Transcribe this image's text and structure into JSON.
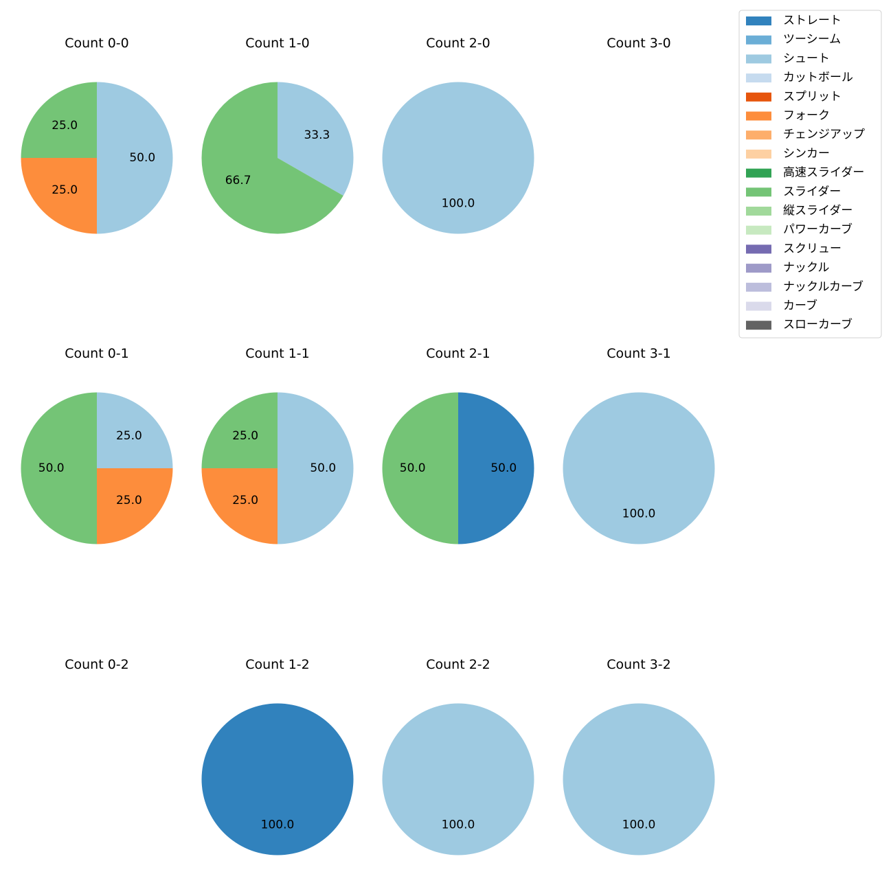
{
  "chart_data": {
    "type": "pie",
    "legend_position": "top-right",
    "legend": [
      {
        "label": "ストレート",
        "color": "#3182bd"
      },
      {
        "label": "ツーシーム",
        "color": "#6baed6"
      },
      {
        "label": "シュート",
        "color": "#9ecae1"
      },
      {
        "label": "カットボール",
        "color": "#c6dbef"
      },
      {
        "label": "スプリット",
        "color": "#e6550d"
      },
      {
        "label": "フォーク",
        "color": "#fd8d3c"
      },
      {
        "label": "チェンジアップ",
        "color": "#fdae6b"
      },
      {
        "label": "シンカー",
        "color": "#fdd0a2"
      },
      {
        "label": "高速スライダー",
        "color": "#31a354"
      },
      {
        "label": "スライダー",
        "color": "#74c476"
      },
      {
        "label": "縦スライダー",
        "color": "#a1d99b"
      },
      {
        "label": "パワーカーブ",
        "color": "#c7e9c0"
      },
      {
        "label": "スクリュー",
        "color": "#756bb1"
      },
      {
        "label": "ナックル",
        "color": "#9e9ac8"
      },
      {
        "label": "ナックルカーブ",
        "color": "#bcbddc"
      },
      {
        "label": "カーブ",
        "color": "#dadaeb"
      },
      {
        "label": "スローカーブ",
        "color": "#636363"
      }
    ],
    "charts": [
      {
        "title": "Count 0-0",
        "slices": [
          {
            "pitch": "シュート",
            "value": 50.0,
            "label": "50.0"
          },
          {
            "pitch": "フォーク",
            "value": 25.0,
            "label": "25.0"
          },
          {
            "pitch": "スライダー",
            "value": 25.0,
            "label": "25.0"
          }
        ]
      },
      {
        "title": "Count 1-0",
        "slices": [
          {
            "pitch": "シュート",
            "value": 33.3,
            "label": "33.3"
          },
          {
            "pitch": "スライダー",
            "value": 66.7,
            "label": "66.7"
          }
        ]
      },
      {
        "title": "Count 2-0",
        "slices": [
          {
            "pitch": "シュート",
            "value": 100.0,
            "label": "100.0"
          }
        ]
      },
      {
        "title": "Count 3-0",
        "slices": []
      },
      {
        "title": "Count 0-1",
        "slices": [
          {
            "pitch": "シュート",
            "value": 25.0,
            "label": "25.0"
          },
          {
            "pitch": "フォーク",
            "value": 25.0,
            "label": "25.0"
          },
          {
            "pitch": "スライダー",
            "value": 50.0,
            "label": "50.0"
          }
        ]
      },
      {
        "title": "Count 1-1",
        "slices": [
          {
            "pitch": "シュート",
            "value": 50.0,
            "label": "50.0"
          },
          {
            "pitch": "フォーク",
            "value": 25.0,
            "label": "25.0"
          },
          {
            "pitch": "スライダー",
            "value": 25.0,
            "label": "25.0"
          }
        ]
      },
      {
        "title": "Count 2-1",
        "slices": [
          {
            "pitch": "ストレート",
            "value": 50.0,
            "label": "50.0"
          },
          {
            "pitch": "スライダー",
            "value": 50.0,
            "label": "50.0"
          }
        ]
      },
      {
        "title": "Count 3-1",
        "slices": [
          {
            "pitch": "シュート",
            "value": 100.0,
            "label": "100.0"
          }
        ]
      },
      {
        "title": "Count 0-2",
        "slices": []
      },
      {
        "title": "Count 1-2",
        "slices": [
          {
            "pitch": "ストレート",
            "value": 100.0,
            "label": "100.0"
          }
        ]
      },
      {
        "title": "Count 2-2",
        "slices": [
          {
            "pitch": "シュート",
            "value": 100.0,
            "label": "100.0"
          }
        ]
      },
      {
        "title": "Count 3-2",
        "slices": [
          {
            "pitch": "シュート",
            "value": 100.0,
            "label": "100.0"
          }
        ]
      }
    ]
  }
}
